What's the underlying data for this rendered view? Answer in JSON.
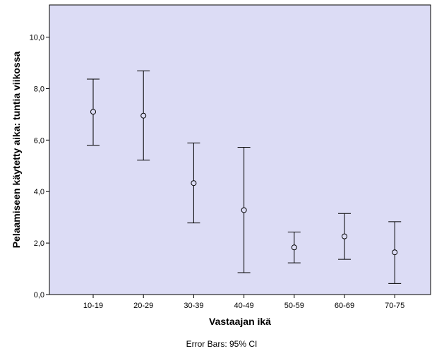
{
  "chart_data": {
    "type": "errorbar",
    "categories": [
      "10-19",
      "20-29",
      "30-39",
      "40-49",
      "50-59",
      "60-69",
      "70-75"
    ],
    "series": [
      {
        "means": [
          7.1,
          6.95,
          4.33,
          3.28,
          1.83,
          2.26,
          1.64
        ],
        "lower": [
          5.8,
          5.22,
          2.78,
          0.85,
          1.23,
          1.37,
          0.43
        ],
        "upper": [
          8.37,
          8.69,
          5.89,
          5.72,
          2.43,
          3.15,
          2.83
        ]
      }
    ],
    "xlabel": "Vastaajan ikä",
    "ylabel": "Pelaamiseen käytetty aika: tuntia viikossa",
    "ylim": [
      0,
      11.25
    ],
    "yticks": [
      "0,0",
      "2,0",
      "4,0",
      "6,0",
      "8,0",
      "10,0"
    ],
    "ytick_values": [
      0,
      2,
      4,
      6,
      8,
      10
    ],
    "footnote": "Error Bars: 95% CI",
    "grid": false,
    "colors": {
      "plot_background": "#dcdcf5",
      "marks": "#000000"
    }
  }
}
